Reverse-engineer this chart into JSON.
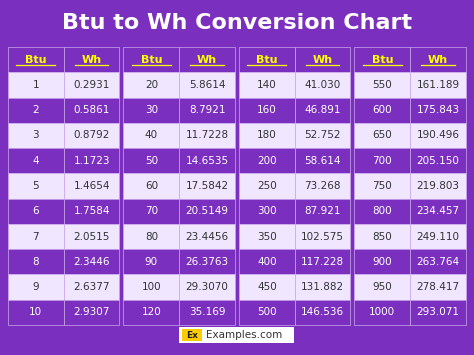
{
  "title": "Btu to Wh Conversion Chart",
  "bg_color": "#7B2FBE",
  "header_row_color": "#7B2FBE",
  "header_text_color": "#FFFF00",
  "row_colors": [
    "#F0E6FF",
    "#7B2FBE"
  ],
  "row_text_colors": [
    "#333333",
    "#FFFFFF"
  ],
  "cell_border_color": "#CCAAEE",
  "group_gap_color": "#7B2FBE",
  "columns": [
    {
      "btu": [
        "1",
        "2",
        "3",
        "4",
        "5",
        "6",
        "7",
        "8",
        "9",
        "10"
      ],
      "wh": [
        "0.2931",
        "0.5861",
        "0.8792",
        "1.1723",
        "1.4654",
        "1.7584",
        "2.0515",
        "2.3446",
        "2.6377",
        "2.9307"
      ]
    },
    {
      "btu": [
        "20",
        "30",
        "40",
        "50",
        "60",
        "70",
        "80",
        "90",
        "100",
        "120"
      ],
      "wh": [
        "5.8614",
        "8.7921",
        "11.7228",
        "14.6535",
        "17.5842",
        "20.5149",
        "23.4456",
        "26.3763",
        "29.3070",
        "35.169"
      ]
    },
    {
      "btu": [
        "140",
        "160",
        "180",
        "200",
        "250",
        "300",
        "350",
        "400",
        "450",
        "500"
      ],
      "wh": [
        "41.030",
        "46.891",
        "52.752",
        "58.614",
        "73.268",
        "87.921",
        "102.575",
        "117.228",
        "131.882",
        "146.536"
      ]
    },
    {
      "btu": [
        "550",
        "600",
        "650",
        "700",
        "750",
        "800",
        "850",
        "900",
        "950",
        "1000"
      ],
      "wh": [
        "161.189",
        "175.843",
        "190.496",
        "205.150",
        "219.803",
        "234.457",
        "249.110",
        "263.764",
        "278.417",
        "293.071"
      ]
    }
  ],
  "footer_label": "Ex",
  "footer_label_bg": "#FFCC00",
  "footer_text": "Examples.com",
  "footer_bg": "#FFFFFF",
  "footer_text_color": "#333333",
  "title_fontsize": 16,
  "header_fontsize": 8,
  "cell_fontsize": 7.5
}
